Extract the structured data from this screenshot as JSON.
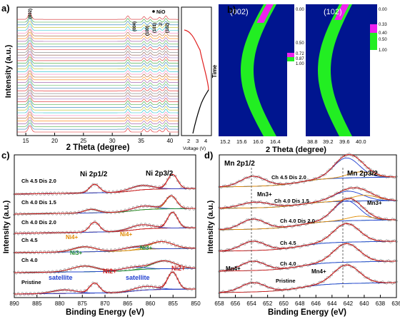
{
  "panel_a": {
    "letter": "a)",
    "ylabel": "Intensity (a.u.)",
    "xlabel": "2 Theta (degree)",
    "xticks": [
      "15",
      "20",
      "25",
      "30",
      "35",
      "40"
    ],
    "peak_labels": [
      "(002)",
      "(004)",
      "(100)",
      "(101)",
      "(102)"
    ],
    "legend_nio": "NiO",
    "legend_al": "Al",
    "voltage_label": "Voltage (V)",
    "voltage_ticks": [
      "2",
      "3",
      "4"
    ],
    "time_label": "Time"
  },
  "panel_b": {
    "letter": "b)",
    "left_title": "(002)",
    "right_title": "(102)",
    "left_xticks": [
      "15.2",
      "15.6",
      "16.0",
      "16.4"
    ],
    "right_xticks": [
      "38.8",
      "39.2",
      "39.6",
      "40.0"
    ],
    "xlabel": "2 Theta (degree)",
    "left_cbar": [
      "0.00",
      "0.50",
      "0.72",
      "0.87",
      "1.00"
    ],
    "right_cbar": [
      "0.00",
      "0.33",
      "0.40",
      "0.50",
      "1.00"
    ],
    "colors": {
      "bg": "#00158f",
      "green": "#22ee22",
      "magenta": "#ee22ee"
    }
  },
  "panel_c": {
    "letter": "c)",
    "ylabel": "Intensity (a.u.)",
    "xlabel": "Binding Energy (eV)",
    "xticks": [
      "890",
      "885",
      "880",
      "875",
      "870",
      "865",
      "860",
      "855",
      "850"
    ],
    "peak_left": "Ni 2p1/2",
    "peak_right": "Ni 2p3/2",
    "spectra": [
      "Ch 4.5 Dis 2.0",
      "Ch 4.0 Dis 1.5",
      "Ch 4.0 Dis 2.0",
      "Ch 4.5",
      "Ch 4.0",
      "Pristine"
    ],
    "ann_ni4_a": "Ni4+",
    "ann_ni4_b": "Ni4+",
    "ann_ni3_a": "Ni3+",
    "ann_ni3_b": "Ni3+",
    "ann_sat_a": "satellite",
    "ann_sat_b": "satellite",
    "ann_ni2_a": "Ni2+",
    "ann_ni2_b": "Ni2+"
  },
  "panel_d": {
    "letter": "d)",
    "ylabel": "Intensity (a.u.)",
    "xlabel": "Binding Energy (eV)",
    "xticks": [
      "658",
      "656",
      "654",
      "652",
      "650",
      "648",
      "646",
      "644",
      "642",
      "640",
      "638",
      "636"
    ],
    "peak_left": "Mn 2p1/2",
    "peak_right": "Mn 2p3/2",
    "spectra": [
      "Ch 4.5 Dis 2.0",
      "Ch 4.0 Dis 1.5",
      "Ch 4.0 Dis 2.0",
      "Ch 4.5",
      "Ch 4.0",
      "Pristine"
    ],
    "ann_mn3_a": "Mn3+",
    "ann_mn3_b": "Mn3+",
    "ann_mn4_a": "Mn4+",
    "ann_mn4_b": "Mn4+"
  }
}
